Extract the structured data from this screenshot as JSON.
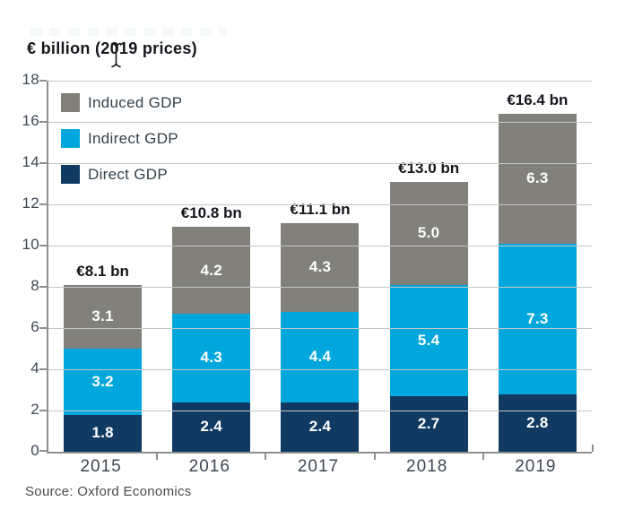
{
  "title": "€ billion (2019 prices)",
  "source": "Source: Oxford Economics",
  "legend": {
    "items": [
      {
        "label": "Induced GDP",
        "color": "#82807a"
      },
      {
        "label": "Indirect GDP",
        "color": "#00a7dc"
      },
      {
        "label": "Direct GDP",
        "color": "#113a63"
      }
    ]
  },
  "colors": {
    "direct": "#113a63",
    "indirect": "#00a7dc",
    "induced": "#82807a",
    "gridline": "#c6c6c6",
    "axis": "#8f8f8f",
    "text_dark": "#15171c",
    "axis_text": "#3e4752"
  },
  "chart_data": {
    "type": "bar",
    "stacked": true,
    "title": "€ billion (2019 prices)",
    "xlabel": "",
    "ylabel": "€ billion (2019 prices)",
    "categories": [
      "2015",
      "2016",
      "2017",
      "2018",
      "2019"
    ],
    "series": [
      {
        "name": "Direct GDP",
        "color": "#113a63",
        "values": [
          1.8,
          2.4,
          2.4,
          2.7,
          2.8
        ]
      },
      {
        "name": "Indirect GDP",
        "color": "#00a7dc",
        "values": [
          3.2,
          4.3,
          4.4,
          5.4,
          7.3
        ]
      },
      {
        "name": "Induced GDP",
        "color": "#82807a",
        "values": [
          3.1,
          4.2,
          4.3,
          5.0,
          6.3
        ]
      }
    ],
    "totals": [
      "€8.1 bn",
      "€10.8 bn",
      "€11.1 bn",
      "€13.0 bn",
      "€16.4 bn"
    ],
    "total_values": [
      8.1,
      10.8,
      11.1,
      13.0,
      16.4
    ],
    "ylim": [
      0,
      18
    ],
    "yticks": [
      0,
      2,
      4,
      6,
      8,
      10,
      12,
      14,
      16,
      18
    ],
    "grid": true,
    "legend_position": "upper-left-inside"
  }
}
